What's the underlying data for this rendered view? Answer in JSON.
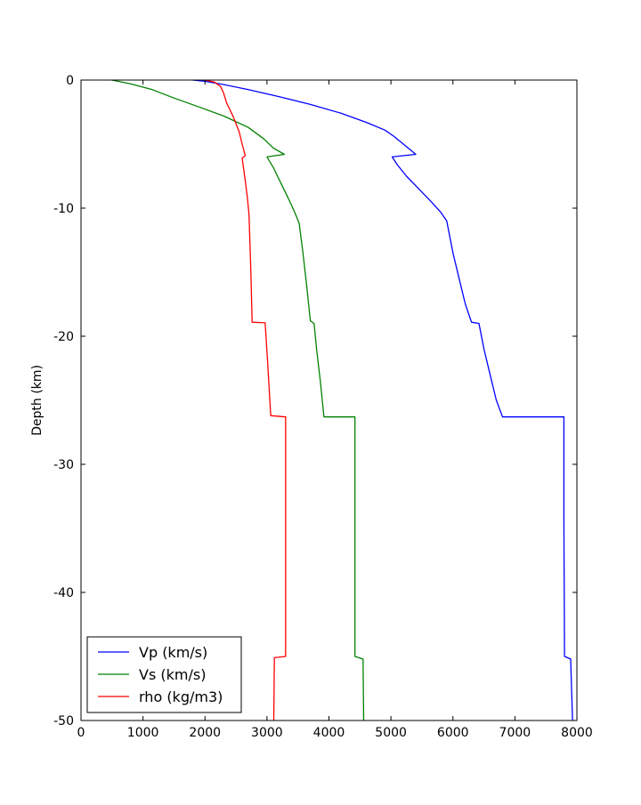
{
  "chart_data": {
    "type": "line",
    "title": "",
    "xlabel": "",
    "ylabel": "Depth (km)",
    "xlim": [
      0,
      8000
    ],
    "ylim": [
      -50,
      0
    ],
    "xticks": [
      0,
      1000,
      2000,
      3000,
      4000,
      5000,
      6000,
      7000,
      8000
    ],
    "yticks": [
      0,
      -10,
      -20,
      -30,
      -40,
      -50
    ],
    "grid": false,
    "legend_placement": "lower-left",
    "series": [
      {
        "name": "Vp (km/s)",
        "color": "#0000ff",
        "points": [
          [
            1800,
            0
          ],
          [
            2000,
            -0.1
          ],
          [
            2300,
            -0.35
          ],
          [
            2700,
            -0.75
          ],
          [
            3200,
            -1.3
          ],
          [
            3700,
            -1.9
          ],
          [
            4200,
            -2.6
          ],
          [
            4600,
            -3.3
          ],
          [
            4900,
            -3.9
          ],
          [
            5050,
            -4.4
          ],
          [
            5200,
            -5.0
          ],
          [
            5400,
            -5.8
          ],
          [
            5020,
            -6.0
          ],
          [
            5100,
            -6.6
          ],
          [
            5250,
            -7.5
          ],
          [
            5450,
            -8.5
          ],
          [
            5650,
            -9.5
          ],
          [
            5800,
            -10.3
          ],
          [
            5900,
            -11.0
          ],
          [
            5920,
            -11.5
          ],
          [
            6000,
            -13.5
          ],
          [
            6100,
            -15.5
          ],
          [
            6200,
            -17.5
          ],
          [
            6300,
            -18.9
          ],
          [
            6420,
            -19.0
          ],
          [
            6500,
            -21.0
          ],
          [
            6600,
            -23.0
          ],
          [
            6700,
            -25.0
          ],
          [
            6800,
            -26.3
          ],
          [
            7790,
            -26.3
          ],
          [
            7790,
            -34.5
          ],
          [
            7800,
            -45.0
          ],
          [
            7900,
            -45.2
          ],
          [
            7930,
            -50.0
          ]
        ]
      },
      {
        "name": "Vs (km/s)",
        "color": "#008000",
        "points": [
          [
            500,
            0
          ],
          [
            800,
            -0.3
          ],
          [
            1150,
            -0.75
          ],
          [
            1500,
            -1.4
          ],
          [
            1900,
            -2.1
          ],
          [
            2300,
            -2.8
          ],
          [
            2700,
            -3.7
          ],
          [
            2950,
            -4.6
          ],
          [
            3100,
            -5.3
          ],
          [
            3280,
            -5.8
          ],
          [
            3000,
            -6.0
          ],
          [
            3100,
            -6.8
          ],
          [
            3200,
            -7.8
          ],
          [
            3300,
            -8.8
          ],
          [
            3400,
            -9.8
          ],
          [
            3480,
            -10.7
          ],
          [
            3520,
            -11.2
          ],
          [
            3580,
            -13.5
          ],
          [
            3640,
            -16.0
          ],
          [
            3700,
            -18.8
          ],
          [
            3760,
            -19.0
          ],
          [
            3800,
            -21.0
          ],
          [
            3860,
            -23.5
          ],
          [
            3920,
            -26.3
          ],
          [
            4420,
            -26.3
          ],
          [
            4420,
            -27.4
          ],
          [
            4420,
            -45.0
          ],
          [
            4550,
            -45.2
          ],
          [
            4560,
            -50.0
          ]
        ]
      },
      {
        "name": "rho (kg/m3)",
        "color": "#ff0000",
        "points": [
          [
            2000,
            0
          ],
          [
            2150,
            -0.15
          ],
          [
            2250,
            -0.5
          ],
          [
            2300,
            -1.0
          ],
          [
            2350,
            -1.8
          ],
          [
            2450,
            -2.8
          ],
          [
            2550,
            -4.0
          ],
          [
            2600,
            -5.0
          ],
          [
            2650,
            -5.9
          ],
          [
            2600,
            -6.1
          ],
          [
            2640,
            -7.5
          ],
          [
            2680,
            -9.0
          ],
          [
            2710,
            -10.5
          ],
          [
            2720,
            -12.0
          ],
          [
            2740,
            -15.0
          ],
          [
            2760,
            -18.9
          ],
          [
            2970,
            -18.95
          ],
          [
            3010,
            -22.0
          ],
          [
            3060,
            -26.2
          ],
          [
            3300,
            -26.3
          ],
          [
            3300,
            -45.0
          ],
          [
            3120,
            -45.1
          ],
          [
            3110,
            -50.0
          ]
        ]
      }
    ]
  }
}
